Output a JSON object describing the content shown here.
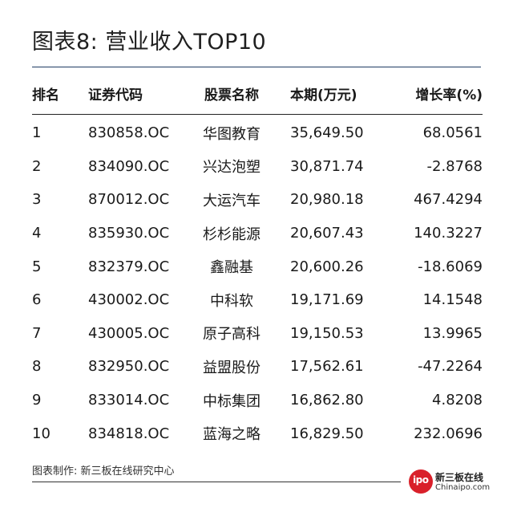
{
  "title": "图表8: 营业收入TOP10",
  "table": {
    "headers": [
      "排名",
      "证券代码",
      "股票名称",
      "本期(万元)",
      "增长率(%)"
    ],
    "rows": [
      [
        "1",
        "830858.OC",
        "华图教育",
        "35,649.50",
        "68.0561"
      ],
      [
        "2",
        "834090.OC",
        "兴达泡塑",
        "30,871.74",
        "-2.8768"
      ],
      [
        "3",
        "870012.OC",
        "大运汽车",
        "20,980.18",
        "467.4294"
      ],
      [
        "4",
        "835930.OC",
        "杉杉能源",
        "20,607.43",
        "140.3227"
      ],
      [
        "5",
        "832379.OC",
        "鑫融基",
        "20,600.26",
        "-18.6069"
      ],
      [
        "6",
        "430002.OC",
        "中科软",
        "19,171.69",
        "14.1548"
      ],
      [
        "7",
        "430005.OC",
        "原子高科",
        "19,150.53",
        "13.9965"
      ],
      [
        "8",
        "832950.OC",
        "益盟股份",
        "17,562.61",
        "-47.2264"
      ],
      [
        "9",
        "833014.OC",
        "中标集团",
        "16,862.80",
        "4.8208"
      ],
      [
        "10",
        "834818.OC",
        "蓝海之略",
        "16,829.50",
        "232.0696"
      ]
    ]
  },
  "footer": {
    "source": "图表制作: 新三板在线研究中心"
  },
  "logo": {
    "mark_text": "ipo",
    "name_cn": "新三板在线",
    "name_en": "Chinaipo.com",
    "color": "#d9202a"
  }
}
